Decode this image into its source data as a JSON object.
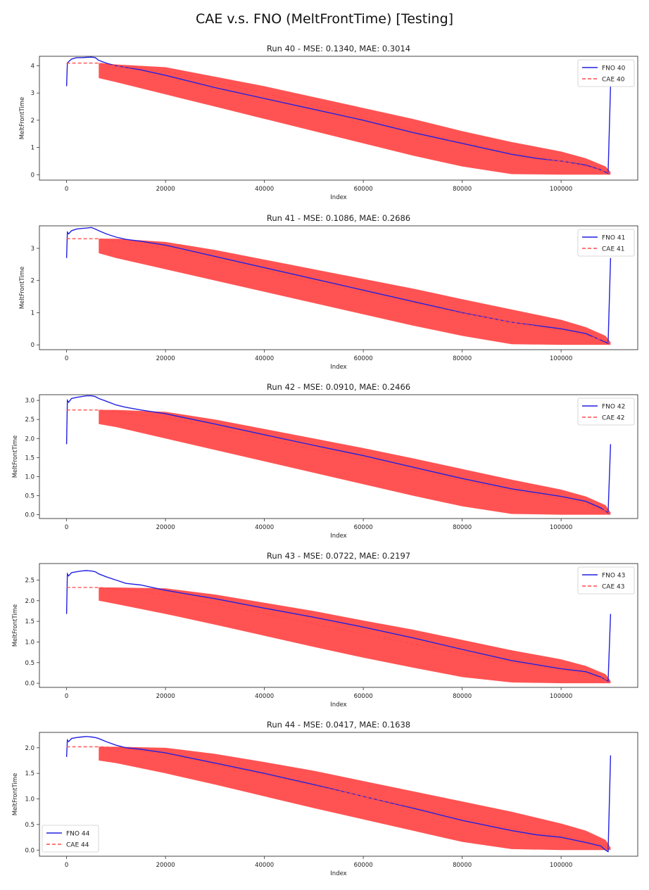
{
  "title": "CAE v.s. FNO (MeltFrontTime) [Testing]",
  "chart_data": [
    {
      "type": "line",
      "title": "Run 40 - MSE: 0.1340, MAE: 0.3014",
      "xlabel": "Index",
      "ylabel": "MeltFrontTime",
      "xlim": [
        -5500,
        115500
      ],
      "ylim": [
        -0.2,
        4.35
      ],
      "xticks": [
        0,
        20000,
        40000,
        60000,
        80000,
        100000
      ],
      "yticks": [
        0,
        1,
        2,
        3,
        4
      ],
      "grid": false,
      "legend_position": "top-right",
      "series": [
        {
          "name": "FNO 40",
          "color": "#2020e0",
          "style": "solid",
          "x": [
            0,
            150,
            400,
            1000,
            2000,
            3000,
            4000,
            5000,
            5800,
            6500,
            8000,
            10000,
            15000,
            20000,
            30000,
            40000,
            50000,
            60000,
            70000,
            80000,
            90000,
            95000,
            100000,
            105000,
            108000,
            109500,
            110000
          ],
          "y": [
            3.25,
            4.1,
            4.15,
            4.25,
            4.3,
            4.3,
            4.31,
            4.32,
            4.3,
            4.2,
            4.1,
            4.0,
            3.85,
            3.65,
            3.2,
            2.8,
            2.4,
            2.0,
            1.55,
            1.15,
            0.75,
            0.6,
            0.5,
            0.35,
            0.18,
            0.05,
            3.3
          ]
        },
        {
          "name": "CAE 40",
          "color": "#ff4a4a",
          "style": "dashed",
          "x": [
            0,
            6500,
            10000,
            20000,
            30000,
            40000,
            50000,
            60000,
            70000,
            80000,
            90000,
            100000,
            105000,
            109000,
            110000
          ],
          "y": [
            4.1,
            4.1,
            4.0,
            3.8,
            3.4,
            3.0,
            2.55,
            2.1,
            1.65,
            1.2,
            0.8,
            0.5,
            0.32,
            0.12,
            0.05
          ]
        }
      ],
      "band": {
        "x": [
          6500,
          10000,
          20000,
          30000,
          40000,
          50000,
          60000,
          70000,
          80000,
          90000,
          100000,
          105000,
          109000,
          110000
        ],
        "upper": [
          4.1,
          4.05,
          3.95,
          3.6,
          3.25,
          2.85,
          2.45,
          2.05,
          1.6,
          1.2,
          0.85,
          0.6,
          0.3,
          0.1
        ],
        "lower": [
          3.55,
          3.4,
          2.95,
          2.5,
          2.05,
          1.6,
          1.15,
          0.7,
          0.3,
          0.02,
          0.0,
          0.0,
          0.0,
          0.0
        ]
      }
    },
    {
      "type": "line",
      "title": "Run 41 - MSE: 0.1086, MAE: 0.2686",
      "xlabel": "Index",
      "ylabel": "MeltFrontTime",
      "xlim": [
        -5500,
        115500
      ],
      "ylim": [
        -0.15,
        3.7
      ],
      "xticks": [
        0,
        20000,
        40000,
        60000,
        80000,
        100000
      ],
      "yticks": [
        0,
        1,
        2,
        3
      ],
      "grid": false,
      "legend_position": "top-right",
      "series": [
        {
          "name": "FNO 41",
          "color": "#2020e0",
          "style": "solid",
          "x": [
            0,
            150,
            400,
            1000,
            2000,
            3000,
            4000,
            5000,
            5800,
            6500,
            8000,
            10000,
            12000,
            15000,
            20000,
            30000,
            40000,
            50000,
            60000,
            70000,
            80000,
            90000,
            95000,
            100000,
            105000,
            108000,
            109500,
            110000
          ],
          "y": [
            2.7,
            3.5,
            3.45,
            3.55,
            3.6,
            3.62,
            3.63,
            3.65,
            3.6,
            3.55,
            3.45,
            3.35,
            3.28,
            3.22,
            3.1,
            2.75,
            2.4,
            2.05,
            1.7,
            1.35,
            1.0,
            0.7,
            0.6,
            0.5,
            0.35,
            0.15,
            0.05,
            2.7
          ]
        },
        {
          "name": "CAE 41",
          "color": "#ff4a4a",
          "style": "dashed",
          "x": [
            0,
            6500,
            10000,
            20000,
            30000,
            40000,
            50000,
            60000,
            70000,
            80000,
            90000,
            100000,
            105000,
            109000,
            110000
          ],
          "y": [
            3.3,
            3.3,
            3.22,
            3.0,
            2.65,
            2.3,
            1.95,
            1.62,
            1.3,
            0.98,
            0.7,
            0.45,
            0.3,
            0.12,
            0.05
          ]
        }
      ],
      "band": {
        "x": [
          6500,
          10000,
          20000,
          30000,
          40000,
          50000,
          60000,
          70000,
          80000,
          90000,
          100000,
          105000,
          109000,
          110000
        ],
        "upper": [
          3.3,
          3.3,
          3.2,
          2.95,
          2.65,
          2.35,
          2.05,
          1.75,
          1.42,
          1.1,
          0.78,
          0.55,
          0.28,
          0.08
        ],
        "lower": [
          2.85,
          2.7,
          2.35,
          2.0,
          1.65,
          1.3,
          0.95,
          0.6,
          0.28,
          0.02,
          0.0,
          0.0,
          0.0,
          0.0
        ]
      }
    },
    {
      "type": "line",
      "title": "Run 42 - MSE: 0.0910, MAE: 0.2466",
      "xlabel": "Index",
      "ylabel": "MeltFrontTime",
      "xlim": [
        -5500,
        115500
      ],
      "ylim": [
        -0.1,
        3.15
      ],
      "xticks": [
        0,
        20000,
        40000,
        60000,
        80000,
        100000
      ],
      "yticks": [
        0.0,
        0.5,
        1.0,
        1.5,
        2.0,
        2.5,
        3.0
      ],
      "ytick_labels": [
        "0.0",
        "0.5",
        "1.0",
        "1.5",
        "2.0",
        "2.5",
        "3.0"
      ],
      "grid": false,
      "legend_position": "top-right",
      "series": [
        {
          "name": "FNO 42",
          "color": "#2020e0",
          "style": "solid",
          "x": [
            0,
            150,
            400,
            1000,
            2000,
            3000,
            4000,
            5000,
            5800,
            6500,
            8000,
            10000,
            12000,
            15000,
            20000,
            30000,
            40000,
            50000,
            60000,
            70000,
            80000,
            90000,
            95000,
            100000,
            105000,
            108000,
            109500,
            110000
          ],
          "y": [
            1.85,
            3.0,
            2.95,
            3.05,
            3.08,
            3.1,
            3.12,
            3.12,
            3.1,
            3.05,
            2.98,
            2.88,
            2.82,
            2.75,
            2.65,
            2.38,
            2.1,
            1.82,
            1.55,
            1.25,
            0.95,
            0.68,
            0.58,
            0.48,
            0.35,
            0.18,
            0.05,
            1.85
          ]
        },
        {
          "name": "CAE 42",
          "color": "#ff4a4a",
          "style": "dashed",
          "x": [
            0,
            6500,
            10000,
            20000,
            30000,
            40000,
            50000,
            60000,
            70000,
            80000,
            90000,
            100000,
            105000,
            109000,
            110000
          ],
          "y": [
            2.75,
            2.75,
            2.7,
            2.55,
            2.28,
            2.0,
            1.72,
            1.45,
            1.17,
            0.9,
            0.63,
            0.42,
            0.28,
            0.1,
            0.04
          ]
        }
      ],
      "band": {
        "x": [
          6500,
          10000,
          20000,
          30000,
          40000,
          50000,
          60000,
          70000,
          80000,
          90000,
          100000,
          105000,
          109000,
          110000
        ],
        "upper": [
          2.75,
          2.75,
          2.7,
          2.5,
          2.25,
          2.0,
          1.75,
          1.48,
          1.2,
          0.92,
          0.66,
          0.48,
          0.25,
          0.06
        ],
        "lower": [
          2.38,
          2.3,
          2.0,
          1.7,
          1.4,
          1.1,
          0.8,
          0.5,
          0.22,
          0.02,
          0.0,
          0.0,
          0.0,
          0.0
        ]
      }
    },
    {
      "type": "line",
      "title": "Run 43 - MSE: 0.0722, MAE: 0.2197",
      "xlabel": "Index",
      "ylabel": "MeltFrontTime",
      "xlim": [
        -5500,
        115500
      ],
      "ylim": [
        -0.1,
        2.9
      ],
      "xticks": [
        0,
        20000,
        40000,
        60000,
        80000,
        100000
      ],
      "yticks": [
        0.0,
        0.5,
        1.0,
        1.5,
        2.0,
        2.5
      ],
      "ytick_labels": [
        "0.0",
        "0.5",
        "1.0",
        "1.5",
        "2.0",
        "2.5"
      ],
      "grid": false,
      "legend_position": "top-right",
      "series": [
        {
          "name": "FNO 43",
          "color": "#2020e0",
          "style": "solid",
          "x": [
            0,
            150,
            400,
            1000,
            2000,
            3000,
            4000,
            5000,
            5800,
            6500,
            8000,
            10000,
            12000,
            15000,
            20000,
            30000,
            40000,
            50000,
            60000,
            70000,
            80000,
            90000,
            95000,
            100000,
            105000,
            108000,
            109500,
            110000
          ],
          "y": [
            1.68,
            2.65,
            2.6,
            2.68,
            2.7,
            2.72,
            2.73,
            2.72,
            2.7,
            2.65,
            2.58,
            2.5,
            2.42,
            2.38,
            2.25,
            2.05,
            1.82,
            1.6,
            1.36,
            1.1,
            0.82,
            0.55,
            0.45,
            0.35,
            0.28,
            0.15,
            0.05,
            1.68
          ]
        },
        {
          "name": "CAE 43",
          "color": "#ff4a4a",
          "style": "dashed",
          "x": [
            0,
            6500,
            10000,
            20000,
            30000,
            40000,
            50000,
            60000,
            70000,
            80000,
            90000,
            100000,
            105000,
            109000,
            110000
          ],
          "y": [
            2.32,
            2.32,
            2.28,
            2.15,
            1.92,
            1.68,
            1.44,
            1.2,
            0.96,
            0.72,
            0.5,
            0.33,
            0.22,
            0.1,
            0.04
          ]
        }
      ],
      "band": {
        "x": [
          6500,
          10000,
          20000,
          30000,
          40000,
          50000,
          60000,
          70000,
          80000,
          90000,
          100000,
          105000,
          109000,
          110000
        ],
        "upper": [
          2.32,
          2.32,
          2.3,
          2.15,
          1.95,
          1.75,
          1.52,
          1.3,
          1.05,
          0.8,
          0.58,
          0.42,
          0.22,
          0.06
        ],
        "lower": [
          2.0,
          1.92,
          1.68,
          1.42,
          1.15,
          0.88,
          0.62,
          0.38,
          0.15,
          0.02,
          0.0,
          0.0,
          0.0,
          0.0
        ]
      }
    },
    {
      "type": "line",
      "title": "Run 44 - MSE: 0.0417, MAE: 0.1638",
      "xlabel": "Index",
      "ylabel": "MeltFrontTime",
      "xlim": [
        -5500,
        115500
      ],
      "ylim": [
        -0.12,
        2.3
      ],
      "xticks": [
        0,
        20000,
        40000,
        60000,
        80000,
        100000
      ],
      "yticks": [
        0.0,
        0.5,
        1.0,
        1.5,
        2.0
      ],
      "ytick_labels": [
        "0.0",
        "0.5",
        "1.0",
        "1.5",
        "2.0"
      ],
      "grid": false,
      "legend_position": "bottom-left",
      "series": [
        {
          "name": "FNO 44",
          "color": "#2020e0",
          "style": "solid",
          "x": [
            0,
            150,
            400,
            1000,
            2000,
            3000,
            4000,
            5000,
            5800,
            6500,
            8000,
            10000,
            12000,
            15000,
            20000,
            30000,
            40000,
            50000,
            60000,
            70000,
            80000,
            90000,
            95000,
            100000,
            105000,
            108000,
            109000,
            109500,
            110000
          ],
          "y": [
            1.82,
            2.15,
            2.12,
            2.18,
            2.2,
            2.21,
            2.22,
            2.21,
            2.2,
            2.18,
            2.12,
            2.05,
            2.0,
            1.97,
            1.9,
            1.7,
            1.5,
            1.28,
            1.05,
            0.82,
            0.58,
            0.38,
            0.3,
            0.25,
            0.15,
            0.08,
            0.0,
            -0.03,
            1.85
          ]
        },
        {
          "name": "CAE 44",
          "color": "#ff4a4a",
          "style": "dashed",
          "x": [
            0,
            6500,
            10000,
            20000,
            30000,
            40000,
            50000,
            60000,
            70000,
            80000,
            90000,
            100000,
            105000,
            109000,
            110000
          ],
          "y": [
            2.02,
            2.02,
            2.0,
            1.88,
            1.68,
            1.47,
            1.26,
            1.05,
            0.84,
            0.63,
            0.43,
            0.28,
            0.18,
            0.08,
            0.04
          ]
        }
      ],
      "band": {
        "x": [
          6500,
          10000,
          20000,
          30000,
          40000,
          50000,
          60000,
          70000,
          80000,
          90000,
          100000,
          105000,
          109000,
          110000
        ],
        "upper": [
          2.02,
          2.02,
          2.0,
          1.88,
          1.72,
          1.55,
          1.35,
          1.15,
          0.95,
          0.75,
          0.52,
          0.38,
          0.2,
          0.05
        ],
        "lower": [
          1.75,
          1.7,
          1.5,
          1.28,
          1.05,
          0.82,
          0.6,
          0.38,
          0.16,
          0.02,
          0.0,
          0.0,
          0.0,
          0.0
        ]
      }
    }
  ]
}
